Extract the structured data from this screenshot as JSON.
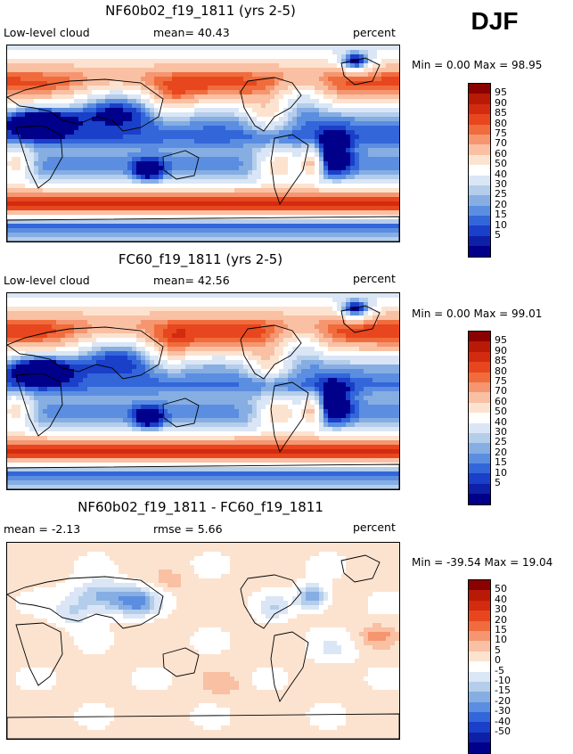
{
  "season": "DJF",
  "panels": [
    {
      "title": "NF60b02_f19_1811 (yrs 2-5)",
      "left": "Low-level cloud",
      "center": "mean=  40.43",
      "right": "percent",
      "minmax": "Min =   0.00 Max =  98.95",
      "palette": "levels"
    },
    {
      "title": "FC60_f19_1811 (yrs 2-5)",
      "left": "Low-level cloud",
      "center": "mean=  42.56",
      "right": "percent",
      "minmax": "Min =   0.00 Max =  99.01",
      "palette": "levels"
    },
    {
      "title": "NF60b02_f19_1811 - FC60_f19_1811",
      "left": "mean =  -2.13",
      "center": "rmse =   5.66",
      "right": "percent",
      "minmax": "Min = -39.54 Max =  19.04",
      "palette": "diff"
    }
  ],
  "colorbars": {
    "levels": {
      "labels": [
        "95",
        "90",
        "85",
        "80",
        "75",
        "70",
        "60",
        "50",
        "40",
        "30",
        "25",
        "20",
        "15",
        "10",
        "5"
      ],
      "colors": [
        "#8b0000",
        "#b81a06",
        "#d22b0f",
        "#e8461e",
        "#f06c3c",
        "#f59670",
        "#f9c0a3",
        "#fce3d0",
        "#ffffff",
        "#dae6f5",
        "#b4cdeb",
        "#86aee2",
        "#5b8ee0",
        "#3366d9",
        "#1a3fc9",
        "#0e1fa8",
        "#00008b"
      ]
    },
    "diff": {
      "labels": [
        "50",
        "40",
        "30",
        "20",
        "15",
        "10",
        "5",
        "0",
        "-5",
        "-10",
        "-15",
        "-20",
        "-30",
        "-40",
        "-50"
      ],
      "colors": [
        "#8b0000",
        "#b81a06",
        "#d22b0f",
        "#e8461e",
        "#f06c3c",
        "#f59670",
        "#f9c0a3",
        "#fce3d0",
        "#ffffff",
        "#dae6f5",
        "#b4cdeb",
        "#86aee2",
        "#5b8ee0",
        "#3366d9",
        "#1a3fc9",
        "#0e1fa8",
        "#00008b"
      ]
    }
  },
  "chart_data": [
    {
      "type": "heatmap",
      "title": "NF60b02_f19_1811 (yrs 2-5)",
      "variable": "Low-level cloud",
      "units": "percent",
      "mean": 40.43,
      "min": 0.0,
      "max": 98.95,
      "levels": [
        5,
        10,
        15,
        20,
        25,
        30,
        40,
        50,
        60,
        70,
        75,
        80,
        85,
        90,
        95
      ]
    },
    {
      "type": "heatmap",
      "title": "FC60_f19_1811 (yrs 2-5)",
      "variable": "Low-level cloud",
      "units": "percent",
      "mean": 42.56,
      "min": 0.0,
      "max": 99.01,
      "levels": [
        5,
        10,
        15,
        20,
        25,
        30,
        40,
        50,
        60,
        70,
        75,
        80,
        85,
        90,
        95
      ]
    },
    {
      "type": "heatmap",
      "title": "NF60b02_f19_1811 - FC60_f19_1811",
      "units": "percent",
      "mean": -2.13,
      "rmse": 5.66,
      "min": -39.54,
      "max": 19.04,
      "levels": [
        -50,
        -40,
        -30,
        -20,
        -15,
        -10,
        -5,
        0,
        5,
        10,
        15,
        20,
        30,
        40,
        50
      ]
    }
  ]
}
